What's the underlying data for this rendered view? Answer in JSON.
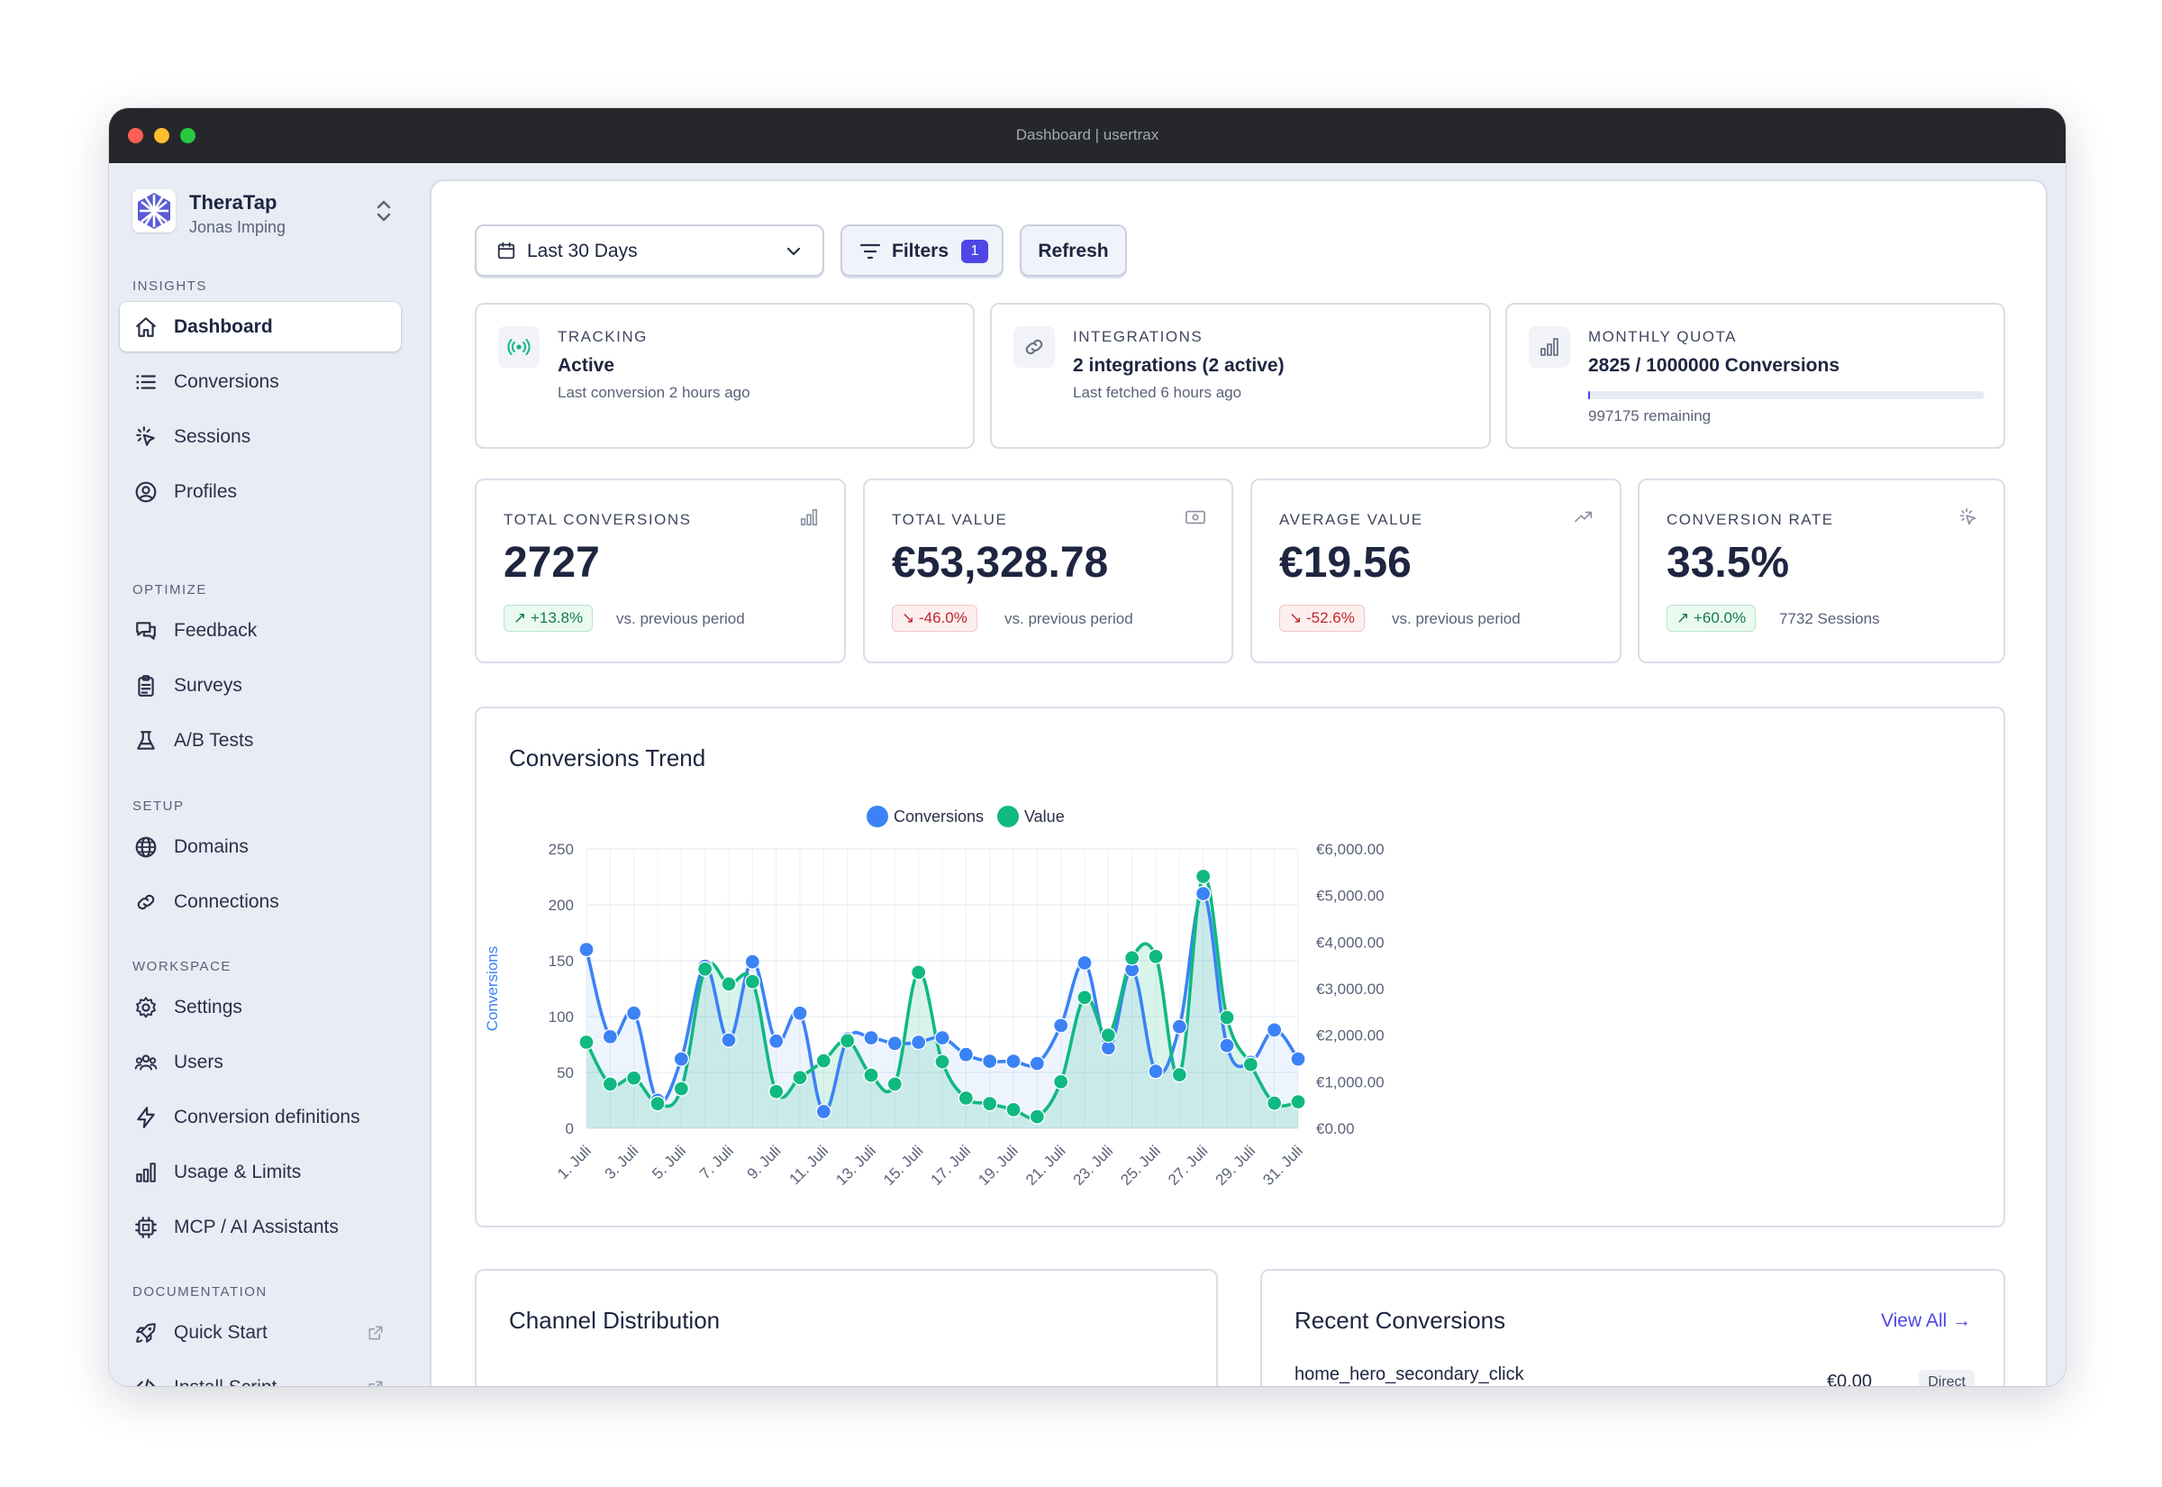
{
  "window": {
    "title": "Dashboard | usertrax"
  },
  "workspace": {
    "name": "TheraTap",
    "user": "Jonas Imping"
  },
  "sidebar": {
    "sections": [
      {
        "title": "INSIGHTS",
        "items": [
          {
            "label": "Dashboard",
            "icon": "home-icon",
            "active": true
          },
          {
            "label": "Conversions",
            "icon": "list-icon"
          },
          {
            "label": "Sessions",
            "icon": "cursor-click-icon"
          },
          {
            "label": "Profiles",
            "icon": "user-circle-icon"
          }
        ]
      },
      {
        "title": "OPTIMIZE",
        "items": [
          {
            "label": "Feedback",
            "icon": "chat-bubbles-icon"
          },
          {
            "label": "Surveys",
            "icon": "clipboard-icon"
          },
          {
            "label": "A/B Tests",
            "icon": "beaker-icon"
          }
        ]
      },
      {
        "title": "SETUP",
        "items": [
          {
            "label": "Domains",
            "icon": "globe-icon"
          },
          {
            "label": "Connections",
            "icon": "link-icon"
          }
        ]
      },
      {
        "title": "WORKSPACE",
        "items": [
          {
            "label": "Settings",
            "icon": "gear-icon"
          },
          {
            "label": "Users",
            "icon": "users-icon"
          },
          {
            "label": "Conversion definitions",
            "icon": "bolt-icon"
          },
          {
            "label": "Usage & Limits",
            "icon": "bar-chart-icon"
          },
          {
            "label": "MCP / AI Assistants",
            "icon": "cpu-chip-icon"
          }
        ]
      },
      {
        "title": "DOCUMENTATION",
        "items": [
          {
            "label": "Quick Start",
            "icon": "rocket-icon",
            "external": true
          },
          {
            "label": "Install Script",
            "icon": "code-icon",
            "external": true
          }
        ]
      }
    ]
  },
  "toolbar": {
    "date_range": "Last 30 Days",
    "filters_label": "Filters",
    "filters_count": "1",
    "refresh_label": "Refresh"
  },
  "status_cards": [
    {
      "title": "TRACKING",
      "value": "Active",
      "sub": "Last conversion 2 hours ago",
      "icon": "signal-icon"
    },
    {
      "title": "INTEGRATIONS",
      "value": "2 integrations (2 active)",
      "sub": "Last fetched 6 hours ago",
      "icon": "link-icon"
    },
    {
      "title": "MONTHLY QUOTA",
      "value": "2825 / 1000000 Conversions",
      "sub": "997175 remaining",
      "icon": "bar-chart-icon",
      "progress": 0.002825
    }
  ],
  "metrics": [
    {
      "title": "TOTAL CONVERSIONS",
      "value": "2727",
      "change": "+13.8%",
      "direction": "up",
      "compare": "vs. previous period",
      "icon": "bar-chart-icon"
    },
    {
      "title": "TOTAL VALUE",
      "value": "€53,328.78",
      "change": "-46.0%",
      "direction": "down",
      "compare": "vs. previous period",
      "icon": "banknote-icon"
    },
    {
      "title": "AVERAGE VALUE",
      "value": "€19.56",
      "change": "-52.6%",
      "direction": "down",
      "compare": "vs. previous period",
      "icon": "trend-up-icon"
    },
    {
      "title": "CONVERSION RATE",
      "value": "33.5%",
      "change": "+60.0%",
      "direction": "up",
      "compare": "7732 Sessions",
      "icon": "cursor-click-icon"
    }
  ],
  "trend": {
    "title": "Conversions Trend"
  },
  "chart_data": {
    "type": "line",
    "title": "",
    "x": [
      "1. Juli",
      "2. Juli",
      "3. Juli",
      "4. Juli",
      "5. Juli",
      "6. Juli",
      "7. Juli",
      "8. Juli",
      "9. Juli",
      "10. Juli",
      "11. Juli",
      "12. Juli",
      "13. Juli",
      "14. Juli",
      "15. Juli",
      "16. Juli",
      "17. Juli",
      "18. Juli",
      "19. Juli",
      "20. Juli",
      "21. Juli",
      "22. Juli",
      "23. Juli",
      "24. Juli",
      "25. Juli",
      "26. Juli",
      "27. Juli",
      "28. Juli",
      "29. Juli",
      "30. Juli",
      "31. Juli"
    ],
    "x_tick_labels": [
      "1. Juli",
      "3. Juli",
      "5. Juli",
      "7. Juli",
      "9. Juli",
      "11. Juli",
      "13. Juli",
      "15. Juli",
      "17. Juli",
      "19. Juli",
      "21. Juli",
      "23. Juli",
      "25. Juli",
      "27. Juli",
      "29. Juli",
      "31. Juli"
    ],
    "series": [
      {
        "name": "Conversions",
        "axis": "left",
        "color": "#3b82f6",
        "values": [
          160,
          82,
          103,
          25,
          62,
          145,
          79,
          149,
          78,
          103,
          15,
          80,
          81,
          76,
          77,
          81,
          66,
          60,
          60,
          58,
          92,
          148,
          72,
          142,
          51,
          91,
          210,
          74,
          59,
          88,
          62
        ]
      },
      {
        "name": "Value",
        "axis": "right",
        "color": "#10b981",
        "values": [
          1850,
          950,
          1080,
          530,
          850,
          3420,
          3100,
          3150,
          790,
          1090,
          1450,
          1880,
          1140,
          950,
          3350,
          1430,
          650,
          530,
          400,
          250,
          1000,
          2810,
          2000,
          3660,
          3690,
          1150,
          5410,
          2380,
          1370,
          540,
          570
        ]
      }
    ],
    "ylabel_left": "Conversions",
    "ylabel_right": "Value",
    "y_left": {
      "min": 0,
      "max": 250,
      "ticks": [
        0,
        50,
        100,
        150,
        200,
        250
      ],
      "tick_labels": [
        "0",
        "50",
        "100",
        "150",
        "200",
        "250"
      ]
    },
    "y_right": {
      "min": 0,
      "max": 6000,
      "ticks": [
        0,
        1000,
        2000,
        3000,
        4000,
        5000,
        6000
      ],
      "tick_labels": [
        "€0.00",
        "€1,000.00",
        "€2,000.00",
        "€3,000.00",
        "€4,000.00",
        "€5,000.00",
        "€6,000.00"
      ]
    },
    "legend": "top-center",
    "grid": true,
    "area_fill": true
  },
  "channel": {
    "title": "Channel Distribution"
  },
  "recent": {
    "title": "Recent Conversions",
    "view_all": "View All →",
    "items": [
      {
        "name": "home_hero_secondary_click",
        "value": "€0.00",
        "channel": "Direct"
      }
    ]
  },
  "colors": {
    "accent": "#4f46e5",
    "conversions": "#3b82f6",
    "value": "#10b981",
    "up": "#157a44",
    "down": "#c0262d"
  }
}
